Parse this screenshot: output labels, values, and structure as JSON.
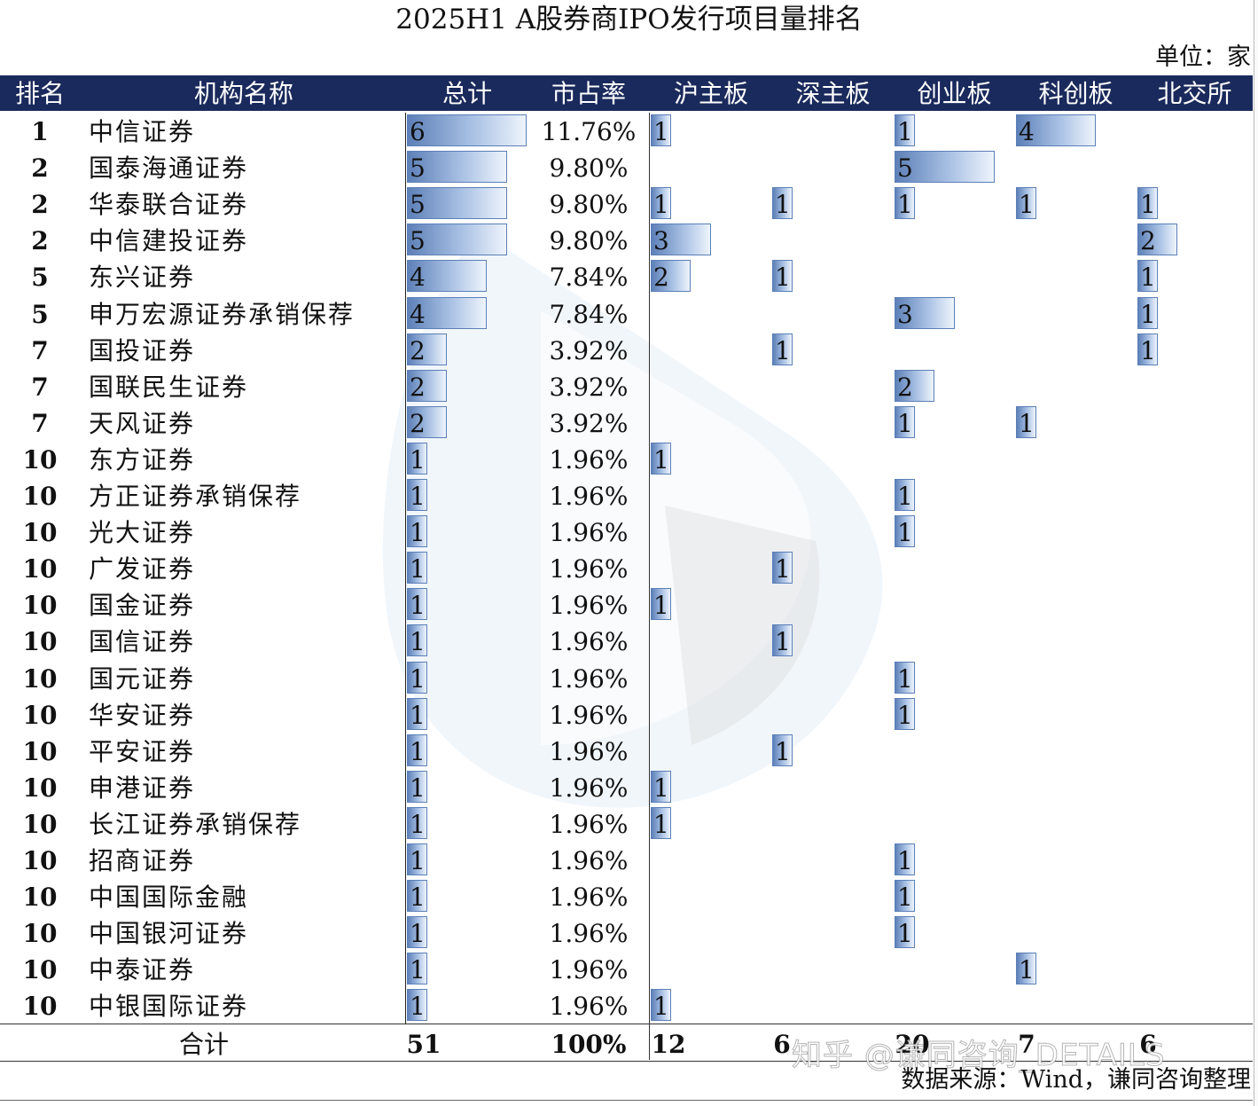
{
  "title": "2025H1 A股券商IPO发行项目量排名",
  "unit": "单位：家",
  "source": "数据来源：Wind，谦同咨询整理",
  "watermark_text": "知乎 @谦同咨询_DETAILS",
  "headers": [
    "排名",
    "机构名称",
    "总计",
    "市占率",
    "沪主板",
    "深主板",
    "创业板",
    "科创板",
    "北交所"
  ],
  "colors": {
    "header_bg": "#1a2a5c",
    "bar_dark": "#5d80b8",
    "bar_light": "#eef4fc"
  },
  "totals": {
    "label": "合计",
    "total": "51",
    "share": "100%",
    "sh_main": "12",
    "sz_main": "6",
    "chinext": "20",
    "star": "7",
    "bse": "6"
  },
  "chart_data": {
    "type": "table",
    "columns": [
      "排名",
      "机构名称",
      "总计",
      "市占率",
      "沪主板",
      "深主板",
      "创业板",
      "科创板",
      "北交所"
    ],
    "rows": [
      {
        "rank": "1",
        "name": "中信证券",
        "total": 6,
        "share": "11.76%",
        "sh_main": 1,
        "sz_main": null,
        "chinext": 1,
        "star": 4,
        "bse": null
      },
      {
        "rank": "2",
        "name": "国泰海通证券",
        "total": 5,
        "share": "9.80%",
        "sh_main": null,
        "sz_main": null,
        "chinext": 5,
        "star": null,
        "bse": null
      },
      {
        "rank": "2",
        "name": "华泰联合证券",
        "total": 5,
        "share": "9.80%",
        "sh_main": 1,
        "sz_main": 1,
        "chinext": 1,
        "star": 1,
        "bse": 1
      },
      {
        "rank": "2",
        "name": "中信建投证券",
        "total": 5,
        "share": "9.80%",
        "sh_main": 3,
        "sz_main": null,
        "chinext": null,
        "star": null,
        "bse": 2
      },
      {
        "rank": "5",
        "name": "东兴证券",
        "total": 4,
        "share": "7.84%",
        "sh_main": 2,
        "sz_main": 1,
        "chinext": null,
        "star": null,
        "bse": 1
      },
      {
        "rank": "5",
        "name": "申万宏源证券承销保荐",
        "total": 4,
        "share": "7.84%",
        "sh_main": null,
        "sz_main": null,
        "chinext": 3,
        "star": null,
        "bse": 1
      },
      {
        "rank": "7",
        "name": "国投证券",
        "total": 2,
        "share": "3.92%",
        "sh_main": null,
        "sz_main": 1,
        "chinext": null,
        "star": null,
        "bse": 1
      },
      {
        "rank": "7",
        "name": "国联民生证券",
        "total": 2,
        "share": "3.92%",
        "sh_main": null,
        "sz_main": null,
        "chinext": 2,
        "star": null,
        "bse": null
      },
      {
        "rank": "7",
        "name": "天风证券",
        "total": 2,
        "share": "3.92%",
        "sh_main": null,
        "sz_main": null,
        "chinext": 1,
        "star": 1,
        "bse": null
      },
      {
        "rank": "10",
        "name": "东方证券",
        "total": 1,
        "share": "1.96%",
        "sh_main": 1,
        "sz_main": null,
        "chinext": null,
        "star": null,
        "bse": null
      },
      {
        "rank": "10",
        "name": "方正证券承销保荐",
        "total": 1,
        "share": "1.96%",
        "sh_main": null,
        "sz_main": null,
        "chinext": 1,
        "star": null,
        "bse": null
      },
      {
        "rank": "10",
        "name": "光大证券",
        "total": 1,
        "share": "1.96%",
        "sh_main": null,
        "sz_main": null,
        "chinext": 1,
        "star": null,
        "bse": null
      },
      {
        "rank": "10",
        "name": "广发证券",
        "total": 1,
        "share": "1.96%",
        "sh_main": null,
        "sz_main": 1,
        "chinext": null,
        "star": null,
        "bse": null
      },
      {
        "rank": "10",
        "name": "国金证券",
        "total": 1,
        "share": "1.96%",
        "sh_main": 1,
        "sz_main": null,
        "chinext": null,
        "star": null,
        "bse": null
      },
      {
        "rank": "10",
        "name": "国信证券",
        "total": 1,
        "share": "1.96%",
        "sh_main": null,
        "sz_main": 1,
        "chinext": null,
        "star": null,
        "bse": null
      },
      {
        "rank": "10",
        "name": "国元证券",
        "total": 1,
        "share": "1.96%",
        "sh_main": null,
        "sz_main": null,
        "chinext": 1,
        "star": null,
        "bse": null
      },
      {
        "rank": "10",
        "name": "华安证券",
        "total": 1,
        "share": "1.96%",
        "sh_main": null,
        "sz_main": null,
        "chinext": 1,
        "star": null,
        "bse": null
      },
      {
        "rank": "10",
        "name": "平安证券",
        "total": 1,
        "share": "1.96%",
        "sh_main": null,
        "sz_main": 1,
        "chinext": null,
        "star": null,
        "bse": null
      },
      {
        "rank": "10",
        "name": "申港证券",
        "total": 1,
        "share": "1.96%",
        "sh_main": 1,
        "sz_main": null,
        "chinext": null,
        "star": null,
        "bse": null
      },
      {
        "rank": "10",
        "name": "长江证券承销保荐",
        "total": 1,
        "share": "1.96%",
        "sh_main": 1,
        "sz_main": null,
        "chinext": null,
        "star": null,
        "bse": null
      },
      {
        "rank": "10",
        "name": "招商证券",
        "total": 1,
        "share": "1.96%",
        "sh_main": null,
        "sz_main": null,
        "chinext": 1,
        "star": null,
        "bse": null
      },
      {
        "rank": "10",
        "name": "中国国际金融",
        "total": 1,
        "share": "1.96%",
        "sh_main": null,
        "sz_main": null,
        "chinext": 1,
        "star": null,
        "bse": null
      },
      {
        "rank": "10",
        "name": "中国银河证券",
        "total": 1,
        "share": "1.96%",
        "sh_main": null,
        "sz_main": null,
        "chinext": 1,
        "star": null,
        "bse": null
      },
      {
        "rank": "10",
        "name": "中泰证券",
        "total": 1,
        "share": "1.96%",
        "sh_main": null,
        "sz_main": null,
        "chinext": null,
        "star": 1,
        "bse": null
      },
      {
        "rank": "10",
        "name": "中银国际证券",
        "total": 1,
        "share": "1.96%",
        "sh_main": 1,
        "sz_main": null,
        "chinext": null,
        "star": null,
        "bse": null
      }
    ]
  }
}
